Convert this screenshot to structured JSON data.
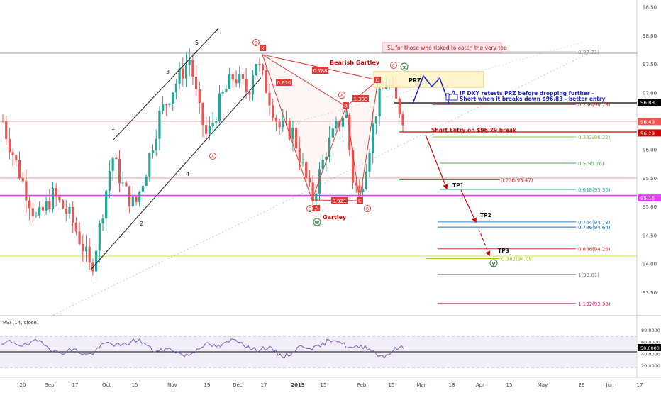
{
  "chart_data": {
    "type": "candlestick",
    "instrument": "DXY",
    "y_axis": {
      "range": [
        93.1,
        98.62
      ],
      "ticks": [
        93.5,
        94.0,
        94.5,
        95.0,
        95.5,
        96.0,
        96.5,
        97.0,
        97.5,
        98.0,
        98.5
      ],
      "tick_labels": [
        "93.50",
        "94.00",
        "94.50",
        "95.00",
        "95.50",
        "96.00",
        "96.50",
        "97.00",
        "97.50",
        "98.00",
        "98.50"
      ]
    },
    "x_axis": {
      "tick_labels": [
        "20",
        "Sep",
        "17",
        "Oct",
        "15",
        "Nov",
        "19",
        "Dec",
        "17",
        "2019",
        "15",
        "Feb",
        "15",
        "Mar",
        "18",
        "Apr",
        "15",
        "May",
        "29",
        "Jun",
        "17"
      ]
    },
    "price_badges": [
      {
        "value": 96.83,
        "label": "96.83",
        "color": "#000000"
      },
      {
        "value": 96.49,
        "label": "96.49",
        "color": "#ef5350"
      },
      {
        "value": 96.29,
        "label": "96.29",
        "color": "#d50000"
      },
      {
        "value": 95.15,
        "label": "95.15",
        "color": "#e040fb"
      }
    ],
    "fib_levels": [
      {
        "label": "0(97.71)",
        "value": 97.71,
        "color": "#888888"
      },
      {
        "label": "0.236(96.79)",
        "value": 96.79,
        "color": "#d32f2f"
      },
      {
        "label": "0.382(96.22)",
        "value": 96.22,
        "color": "#8bc34a"
      },
      {
        "label": "0.5(95.76)",
        "value": 95.76,
        "color": "#4caf50"
      },
      {
        "label": "0.236(95.47)",
        "value": 95.47,
        "color": "#d32f2f"
      },
      {
        "label": "0.618(95.30)",
        "value": 95.3,
        "color": "#26a69a"
      },
      {
        "label": "0.764(94.73)",
        "value": 94.73,
        "color": "#1e88e5"
      },
      {
        "label": "0.786(94.64)",
        "value": 94.64,
        "color": "#1565c0"
      },
      {
        "label": "0.886(94.26)",
        "value": 94.26,
        "color": "#d32f2f"
      },
      {
        "label": "0.382(94.09)",
        "value": 94.09,
        "color": "#aab300"
      },
      {
        "label": "1(93.81)",
        "value": 93.81,
        "color": "#757575"
      },
      {
        "label": "1.132(93.30)",
        "value": 93.3,
        "color": "#c2185b"
      }
    ],
    "pattern_points": [
      {
        "label": "X",
        "value": 97.71
      },
      {
        "label": "A",
        "value": 95.05
      },
      {
        "label": "B",
        "value": 96.65
      },
      {
        "label": "C",
        "value": 95.15
      },
      {
        "label": "D",
        "value": 97.0
      }
    ],
    "ratios": [
      "0.788",
      "0.616",
      "1.303",
      "0.921"
    ],
    "annotations": {
      "sl_note": "SL for those who risked to catch the very top",
      "bearish": "Bearish Gartley",
      "gartley": "Gartley",
      "prz": "PRZ",
      "retest_line1": "IF DXY retests PRZ before dropping further -",
      "retest_line2": "Short when it breaks down $96.83 - better entry",
      "short_entry": "Short Entry on $96.29 break",
      "tp1": "TP1",
      "tp2": "TP2",
      "tp3": "TP3",
      "wave_numbers": [
        "1",
        "2",
        "3",
        "4",
        "5"
      ]
    },
    "rsi": {
      "title": "RSI (14, close)",
      "ticks": [
        20,
        40,
        60,
        80
      ],
      "tick_labels": [
        "20.0000",
        "40.0000",
        "60.0000",
        "80.0000"
      ],
      "badge": "50.0000",
      "band": [
        30,
        70
      ]
    }
  }
}
